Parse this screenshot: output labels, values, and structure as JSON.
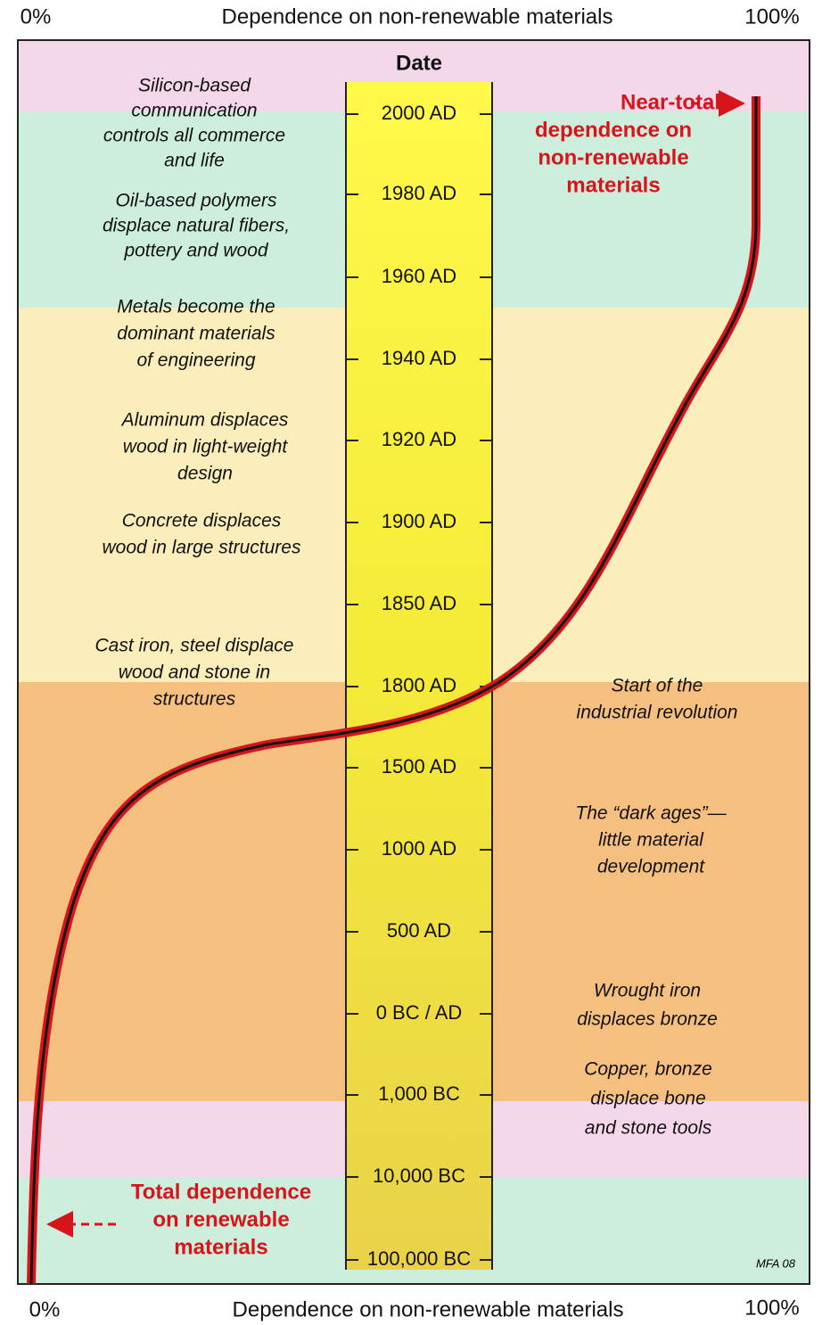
{
  "top_axis": {
    "left": "0%",
    "title": "Dependence on non-renewable materials",
    "right": "100%"
  },
  "bottom_axis": {
    "left": "0%",
    "title": "Dependence on non-renewable materials",
    "right": "100%"
  },
  "date_column": {
    "title": "Date",
    "ticks": [
      "2000 AD",
      "1980 AD",
      "1960 AD",
      "1940 AD",
      "1920 AD",
      "1900 AD",
      "1850 AD",
      "1800 AD",
      "1500 AD",
      "1000 AD",
      "500 AD",
      "0 BC / AD",
      "1,000 BC",
      "10,000 BC",
      "100,000 BC"
    ]
  },
  "left_notes": [
    {
      "lines": [
        "Silicon-based",
        "communication",
        "controls all commerce",
        "and life"
      ]
    },
    {
      "lines": [
        "Oil-based polymers",
        "displace natural fibers,",
        "pottery and wood"
      ]
    },
    {
      "lines": [
        "Metals become the",
        "dominant materials",
        "of engineering"
      ]
    },
    {
      "lines": [
        "Aluminum displaces",
        "wood in light-weight",
        "design"
      ]
    },
    {
      "lines": [
        "Concrete displaces",
        "wood in large structures"
      ]
    },
    {
      "lines": [
        "Cast iron, steel displace",
        "wood and stone in",
        "structures"
      ]
    }
  ],
  "right_notes": [
    {
      "lines": [
        "Start of the",
        "industrial revolution"
      ]
    },
    {
      "lines": [
        "The “dark ages”—",
        "little material",
        "development"
      ]
    },
    {
      "lines": [
        "Wrought iron",
        "displaces bronze"
      ]
    },
    {
      "lines": [
        "Copper, bronze",
        "displace bone",
        "and stone tools"
      ]
    }
  ],
  "callouts": {
    "near_total": {
      "lines": [
        "Near-total",
        "dependence on",
        "non-renewable",
        "materials"
      ]
    },
    "total": {
      "lines": [
        "Total dependence",
        "on renewable",
        "materials"
      ]
    }
  },
  "credit": "MFA 08"
}
